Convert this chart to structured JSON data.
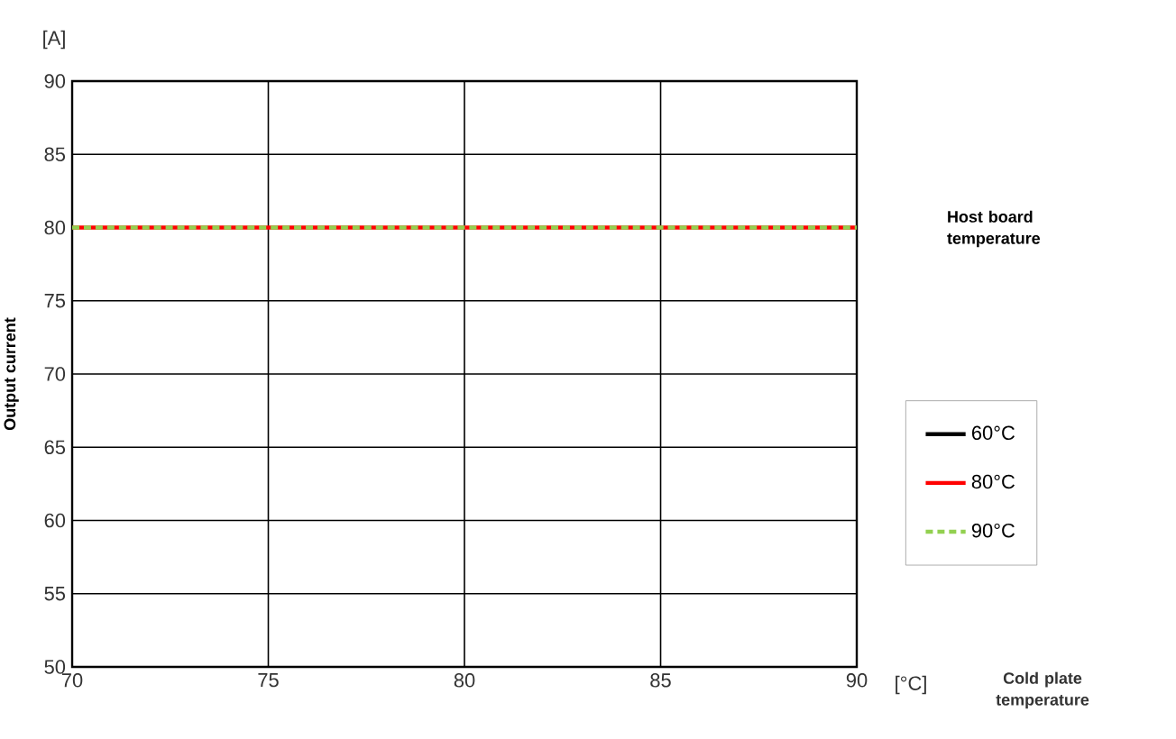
{
  "chart_data": {
    "type": "line",
    "ylabel": "Output current",
    "legend_title": "Host board temperature",
    "annotations": [
      "[A]",
      "[°C]",
      "Cold plate temperature"
    ],
    "xlim": [
      70,
      90
    ],
    "xticks": [
      70,
      75,
      80,
      85,
      90
    ],
    "ylim": [
      50,
      90
    ],
    "yticks": [
      50,
      55,
      60,
      65,
      70,
      75,
      80,
      85,
      90
    ],
    "grid": true,
    "legend": "right",
    "marker": "none",
    "x": [
      70,
      90
    ],
    "series": [
      {
        "name": "60°C",
        "color": "#000000",
        "values": [
          null,
          null
        ],
        "line_style": "solid"
      },
      {
        "name": "80°C",
        "color": "#ff0000",
        "values": [
          80,
          80
        ],
        "line_style": "solid"
      },
      {
        "name": "90°C",
        "color": "#92d050",
        "values": [
          80,
          80
        ],
        "line_style": "dashed"
      }
    ]
  }
}
